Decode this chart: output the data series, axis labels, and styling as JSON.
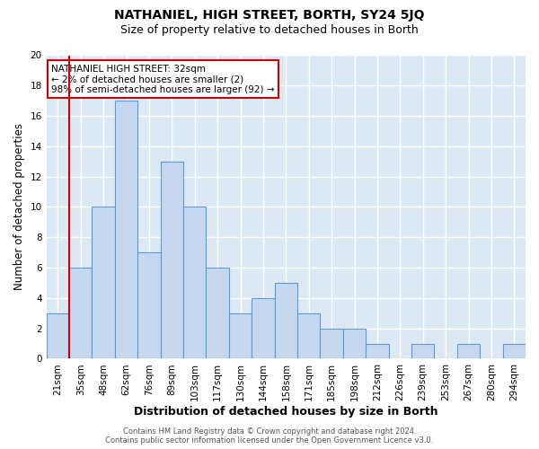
{
  "title": "NATHANIEL, HIGH STREET, BORTH, SY24 5JQ",
  "subtitle": "Size of property relative to detached houses in Borth",
  "xlabel": "Distribution of detached houses by size in Borth",
  "ylabel": "Number of detached properties",
  "categories": [
    "21sqm",
    "35sqm",
    "48sqm",
    "62sqm",
    "76sqm",
    "89sqm",
    "103sqm",
    "117sqm",
    "130sqm",
    "144sqm",
    "158sqm",
    "171sqm",
    "185sqm",
    "198sqm",
    "212sqm",
    "226sqm",
    "239sqm",
    "253sqm",
    "267sqm",
    "280sqm",
    "294sqm"
  ],
  "values": [
    3,
    6,
    10,
    17,
    7,
    13,
    10,
    6,
    3,
    4,
    5,
    3,
    2,
    2,
    1,
    0,
    1,
    0,
    1,
    0,
    1
  ],
  "bar_color": "#c5d8f0",
  "bar_edge_color": "#5b9bd5",
  "background_color": "#dce9f5",
  "grid_color": "#ffffff",
  "vline_color": "#cc0000",
  "annotation_line1": "NATHANIEL HIGH STREET: 32sqm",
  "annotation_line2": "← 2% of detached houses are smaller (2)",
  "annotation_line3": "98% of semi-detached houses are larger (92) →",
  "annotation_box_color": "#ffffff",
  "annotation_box_edge_color": "#cc0000",
  "footer_text": "Contains HM Land Registry data © Crown copyright and database right 2024.\nContains public sector information licensed under the Open Government Licence v3.0.",
  "ylim": [
    0,
    20
  ],
  "title_fontsize": 10,
  "subtitle_fontsize": 9,
  "ylabel_fontsize": 8.5,
  "xlabel_fontsize": 9,
  "tick_fontsize": 7.5,
  "annot_fontsize": 7.5
}
